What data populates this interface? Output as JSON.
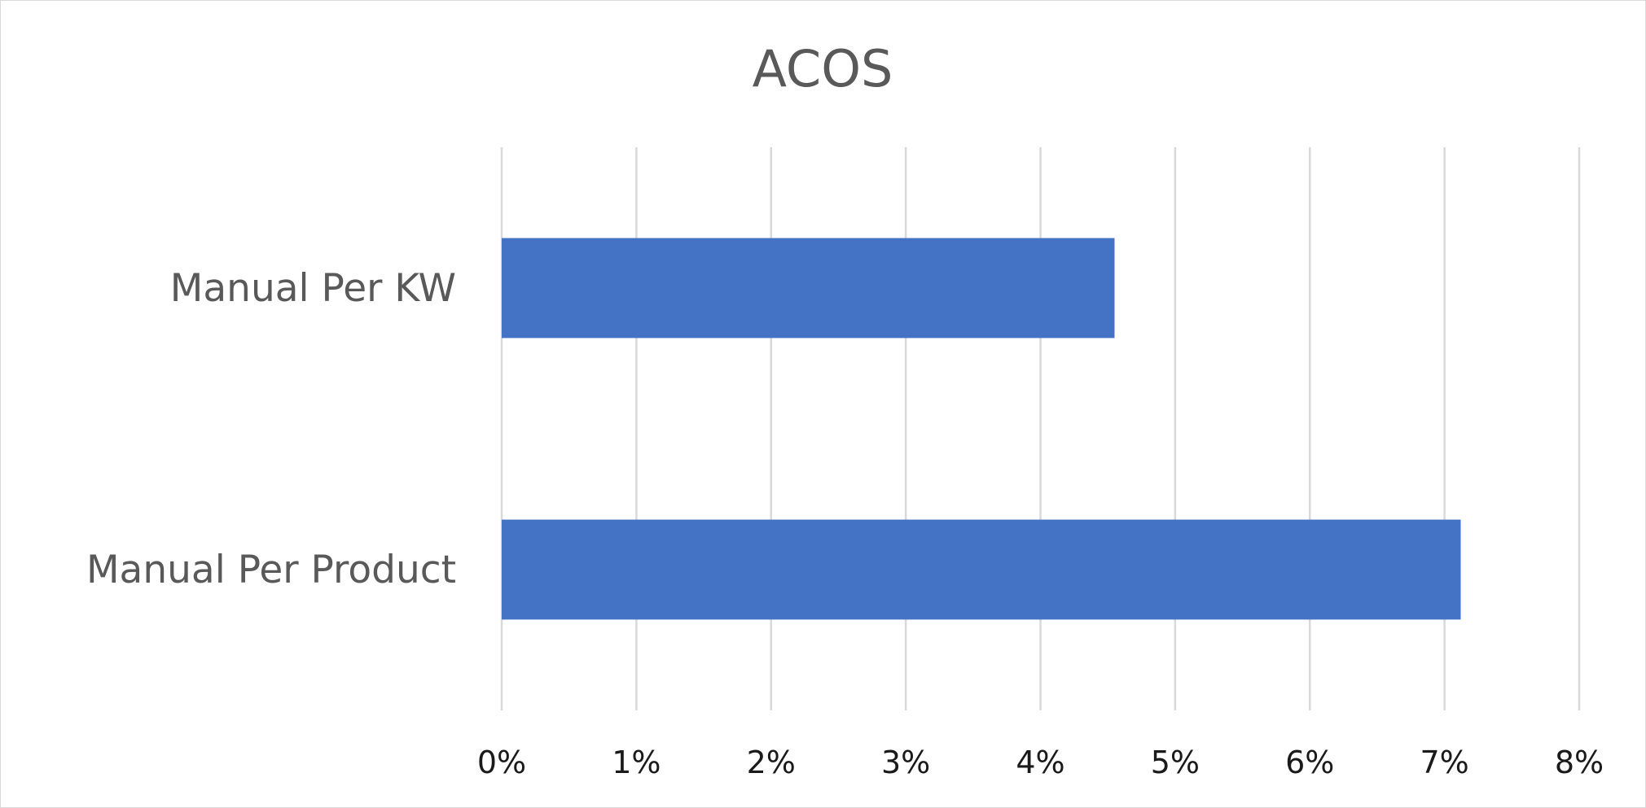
{
  "chart_data": {
    "type": "bar",
    "orientation": "horizontal",
    "title": "ACOS",
    "categories": [
      "Manual Per KW",
      "Manual Per Product"
    ],
    "values": [
      0.0455,
      0.0712
    ],
    "value_format": "percent",
    "xlim": [
      0,
      0.08
    ],
    "x_ticks": [
      0,
      0.01,
      0.02,
      0.03,
      0.04,
      0.05,
      0.06,
      0.07,
      0.08
    ],
    "x_tick_labels": [
      "0%",
      "1%",
      "2%",
      "3%",
      "4%",
      "5%",
      "6%",
      "7%",
      "8%"
    ],
    "grid": true,
    "legend": "none",
    "colors": {
      "bar": "#4472C4",
      "grid": "#d9d9d9",
      "title": "#595959",
      "category_label": "#595959",
      "tick_label": "#1a1a1a"
    }
  }
}
